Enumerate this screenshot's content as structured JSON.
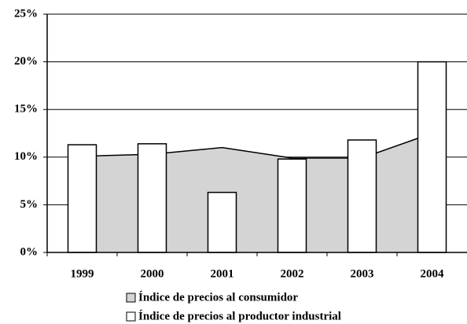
{
  "chart_data": {
    "type": "bar",
    "categories": [
      "1999",
      "2000",
      "2001",
      "2002",
      "2003",
      "2004"
    ],
    "series": [
      {
        "name": "Índice de precios al consumidor",
        "type": "area",
        "color": "#d4d4d4",
        "values": [
          10.1,
          10.3,
          11.0,
          9.9,
          9.9,
          12.5
        ]
      },
      {
        "name": "Índice de precios al productor industrial",
        "type": "bar",
        "color": "#ffffff",
        "values": [
          11.3,
          11.4,
          6.3,
          9.8,
          11.8,
          20.0
        ]
      }
    ],
    "ylim": [
      0,
      25
    ],
    "yticks": [
      {
        "value": 0,
        "label": "0%"
      },
      {
        "value": 5,
        "label": "5%"
      },
      {
        "value": 10,
        "label": "10%"
      },
      {
        "value": 15,
        "label": "15%"
      },
      {
        "value": 20,
        "label": "20%"
      },
      {
        "value": 25,
        "label": "25%"
      }
    ],
    "grid": true
  }
}
